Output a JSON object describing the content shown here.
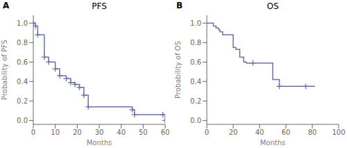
{
  "chart_data": [
    {
      "type": "line",
      "line_style": "step",
      "title": "PFS",
      "annotations": [
        "A"
      ],
      "xlabel": "Months",
      "ylabel": "Probability of PFS",
      "x": [
        0,
        1,
        2,
        5,
        7,
        10,
        12,
        15,
        17,
        19,
        21,
        23,
        25,
        45,
        46,
        59,
        60
      ],
      "values": [
        1.0,
        0.97,
        0.88,
        0.65,
        0.6,
        0.53,
        0.46,
        0.43,
        0.39,
        0.37,
        0.34,
        0.26,
        0.14,
        0.11,
        0.06,
        0.06,
        0.0
      ],
      "censors": {
        "x": [],
        "values": []
      },
      "marker": "+",
      "color": "#6872A8",
      "xlim": [
        0,
        60
      ],
      "ylim": [
        -0.04,
        1.08
      ],
      "xticks": [
        0,
        10,
        20,
        30,
        40,
        50,
        60
      ],
      "yticks": [
        {
          "value": 0.0,
          "label": "0.0"
        },
        0.2,
        0.4,
        0.6,
        0.8,
        {
          "value": 1.0,
          "label": "1.0"
        }
      ]
    },
    {
      "type": "line",
      "line_style": "step",
      "title": "OS",
      "annotations": [
        "B"
      ],
      "xlabel": "Months",
      "ylabel": "Probability of OS",
      "x": [
        0,
        5,
        7,
        9,
        10,
        12,
        20,
        22,
        25,
        28,
        30,
        35,
        50,
        55,
        60,
        82
      ],
      "values": [
        1.0,
        0.97,
        0.95,
        0.93,
        0.91,
        0.88,
        0.75,
        0.73,
        0.65,
        0.6,
        0.59,
        0.59,
        0.42,
        0.35,
        0.35,
        0.35
      ],
      "censors": {
        "x": [
          35,
          55,
          75
        ],
        "values": [
          0.59,
          0.35,
          0.35
        ]
      },
      "marker": "+",
      "color": "#6872A8",
      "xlim": [
        0,
        100
      ],
      "ylim": [
        -0.04,
        1.08
      ],
      "xticks": [
        0,
        20,
        40,
        60,
        80,
        100
      ],
      "yticks": [
        {
          "value": 0.0,
          "label": "0.0"
        },
        0.2,
        0.4,
        0.6,
        0.8,
        {
          "value": 1.0,
          "label": "1.0"
        }
      ]
    }
  ]
}
